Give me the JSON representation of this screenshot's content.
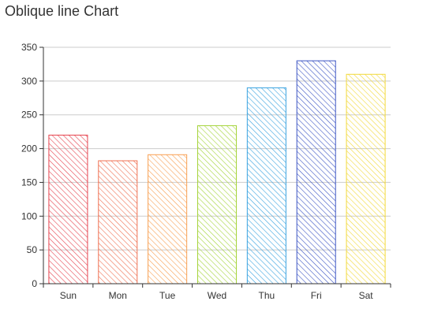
{
  "title": "Oblique line Chart",
  "chart_data": {
    "type": "bar",
    "title": "Oblique line Chart",
    "categories": [
      "Sun",
      "Mon",
      "Tue",
      "Wed",
      "Thu",
      "Fri",
      "Sat"
    ],
    "values": [
      220,
      182,
      191,
      234,
      290,
      330,
      310
    ],
    "bar_colors": [
      "#e6444f",
      "#ef7153",
      "#f8a052",
      "#a5d43a",
      "#3aa3e0",
      "#3d56c4",
      "#f2d93a"
    ],
    "fill_pattern": "diagonal-hatch",
    "ylim": [
      0,
      350
    ],
    "yticks": [
      0,
      50,
      100,
      150,
      200,
      250,
      300,
      350
    ],
    "xlabel": "",
    "ylabel": "",
    "grid": true,
    "legend": "none"
  }
}
